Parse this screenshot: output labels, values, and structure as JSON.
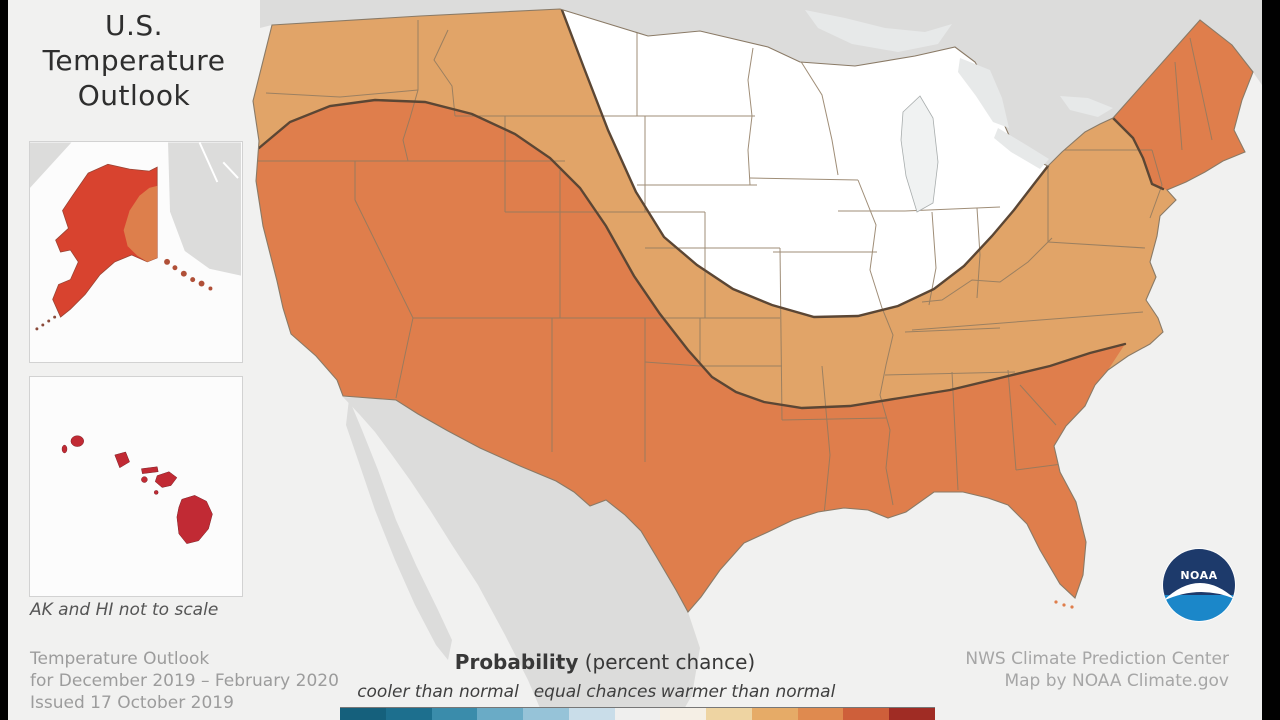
{
  "title": {
    "line1": "U.S.",
    "line2": "Temperature",
    "line3": "Outlook"
  },
  "insets": {
    "note": "AK and HI not to scale"
  },
  "footer_left": {
    "line1": "Temperature Outlook",
    "line2": "for December 2019 – February 2020",
    "line3": "Issued 17 October 2019"
  },
  "footer_right": {
    "line1": "NWS Climate Prediction Center",
    "line2": "Map by NOAA Climate.gov"
  },
  "legend": {
    "heading": "Probability",
    "heading_suffix": " (percent chance)",
    "labels": [
      "cooler than normal",
      "equal chances",
      "warmer than normal"
    ],
    "colorbar_colors": [
      "#15607c",
      "#1d6f8e",
      "#3a8cab",
      "#6aabc6",
      "#96c3d8",
      "#c9dde9",
      "#efefee",
      "#f5efe5",
      "#eed4a2",
      "#e6ab67",
      "#df8a4f",
      "#ce5f3a",
      "#a02c24"
    ]
  },
  "logo": {
    "text": "NOAA"
  },
  "map": {
    "category_colors": {
      "equal_chances": "#ffffff",
      "warmer_33_40": "#e1a468",
      "warmer_40_50": "#df7e4c",
      "alaska_warmer": "#d8432f",
      "hawaii_warmer": "#c12a34",
      "neighbor_land": "#dcdcdb",
      "ocean": "#f1f1f0",
      "contour_line": "#5b4634",
      "state_border": "#8f7a60"
    }
  }
}
